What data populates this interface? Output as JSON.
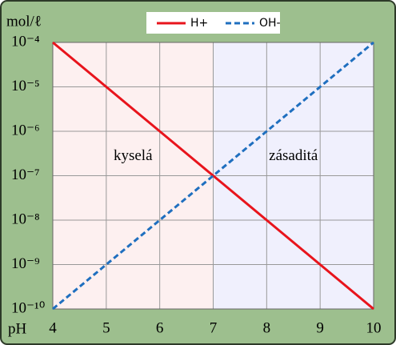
{
  "chart_data": {
    "type": "line",
    "ylabel": "mol/ℓ",
    "xlabel": "pH",
    "x": [
      4,
      5,
      6,
      7,
      8,
      9,
      10
    ],
    "series": [
      {
        "name": "H+",
        "color": "#e8141c",
        "dash": false,
        "values": [
          0.0001,
          1e-05,
          1e-06,
          1e-07,
          1e-08,
          1e-09,
          1e-10
        ]
      },
      {
        "name": "OH-",
        "color": "#1f6fbf",
        "dash": true,
        "values": [
          1e-10,
          1e-09,
          1e-08,
          1e-07,
          1e-06,
          1e-05,
          0.0001
        ]
      }
    ],
    "regions": [
      {
        "label": "kyselá",
        "xlim": [
          4,
          7
        ],
        "color": "#fdf0f0"
      },
      {
        "label": "zásaditá",
        "xlim": [
          7,
          10
        ],
        "color": "#f0f0fd"
      }
    ],
    "xlim": [
      4,
      10
    ],
    "xticks": [
      4,
      5,
      6,
      7,
      8,
      9,
      10
    ],
    "ylim": [
      1e-10,
      0.0001
    ],
    "ylog": true,
    "yticks": [
      {
        "value": 1e-10,
        "label": "10⁻¹⁰"
      },
      {
        "value": 1e-09,
        "label": "10⁻⁹"
      },
      {
        "value": 1e-08,
        "label": "10⁻⁸"
      },
      {
        "value": 1e-07,
        "label": "10⁻⁷"
      },
      {
        "value": 1e-06,
        "label": "10⁻⁶"
      },
      {
        "value": 1e-05,
        "label": "10⁻⁵"
      },
      {
        "value": 0.0001,
        "label": "10⁻⁴"
      }
    ],
    "grid": true,
    "legend": "top"
  }
}
